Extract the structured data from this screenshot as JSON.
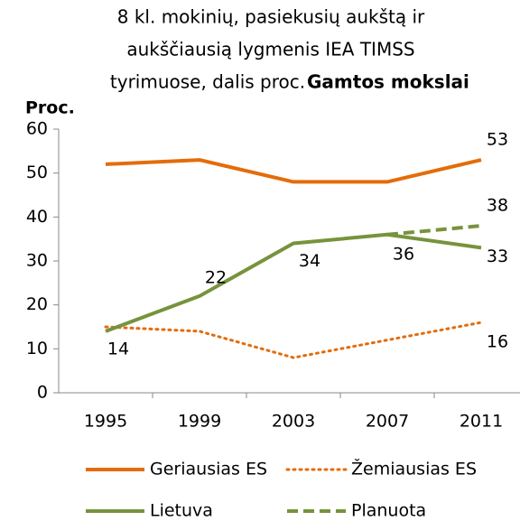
{
  "chart_data": {
    "type": "line",
    "title_lines": [
      "8 kl. mokinių, pasiekusių aukštą ir",
      "aukščiausią lygmenis IEA TIMSS",
      "tyrimuose, dalis proc."
    ],
    "title_emphasis": "Gamtos mokslai",
    "y_label": "Proc.",
    "categories": [
      "1995",
      "1999",
      "2003",
      "2007",
      "2011"
    ],
    "ylim": [
      0,
      60
    ],
    "yticks": [
      0,
      10,
      20,
      30,
      40,
      50,
      60
    ],
    "grid": false,
    "legend": "bottom",
    "series": [
      {
        "name": "Geriausias ES",
        "color": "#e46c0a",
        "style": "solid",
        "values": [
          52,
          53,
          48,
          48,
          53
        ],
        "value_labels": [
          null,
          null,
          null,
          null,
          "53"
        ]
      },
      {
        "name": "Žemiausias ES",
        "color": "#e46c0a",
        "style": "dotted",
        "values": [
          15,
          14,
          8,
          12,
          16
        ],
        "value_labels": [
          null,
          null,
          null,
          null,
          "16"
        ]
      },
      {
        "name": "Lietuva",
        "color": "#77933c",
        "style": "solid",
        "values": [
          14,
          22,
          34,
          36,
          33
        ],
        "value_labels": [
          "14",
          "22",
          "34",
          "36",
          "33"
        ]
      },
      {
        "name": "Planuota",
        "color": "#77933c",
        "style": "dashed",
        "values": [
          null,
          null,
          null,
          36,
          38
        ],
        "value_labels": [
          null,
          null,
          null,
          null,
          "38"
        ]
      }
    ]
  }
}
